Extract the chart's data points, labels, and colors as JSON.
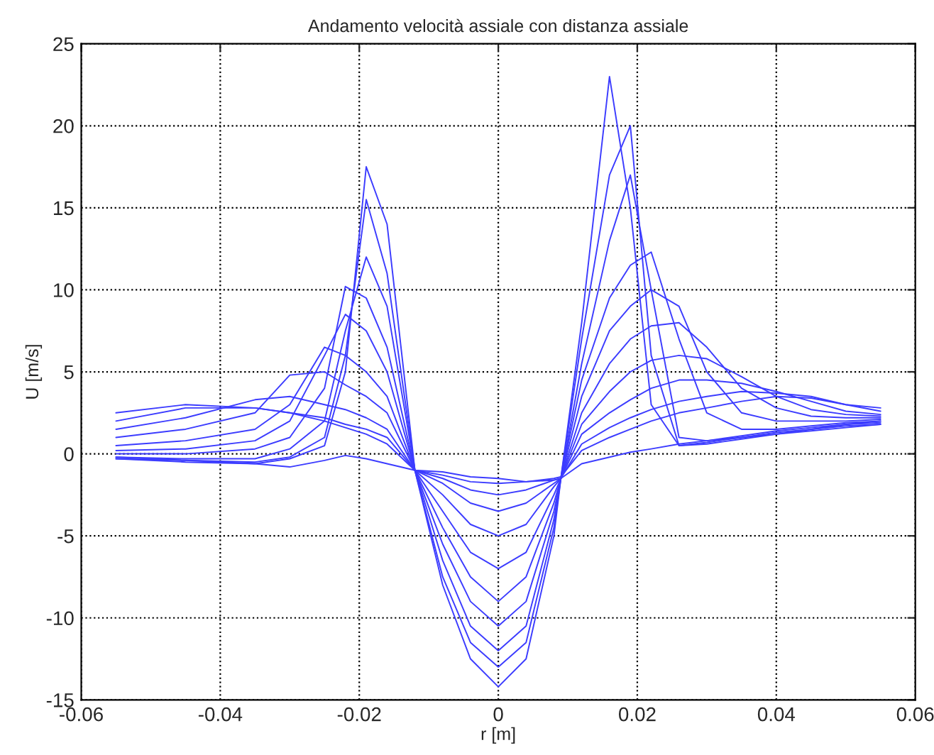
{
  "chart_data": {
    "type": "line",
    "title": "Andamento velocità assiale con distanza assiale",
    "xlabel": "r [m]",
    "ylabel": "U [m/s]",
    "x": [
      -0.055,
      -0.045,
      -0.035,
      -0.03,
      -0.025,
      -0.022,
      -0.019,
      -0.016,
      -0.012,
      -0.008,
      -0.004,
      0,
      0.004,
      0.008,
      0.009,
      0.012,
      0.016,
      0.019,
      0.022,
      0.026,
      0.03,
      0.035,
      0.04,
      0.045,
      0.05,
      0.055
    ],
    "series": [
      {
        "color": "#3c3cff",
        "values": [
          -0.3,
          -0.5,
          -0.6,
          -0.3,
          0.5,
          5,
          17.5,
          14,
          -1,
          -8,
          -12.5,
          -14.2,
          -12.5,
          -5,
          -1.5,
          8,
          23,
          15,
          3,
          0.5,
          0.6,
          0.9,
          1.2,
          1.5,
          1.7,
          1.8
        ]
      },
      {
        "color": "#3c3cff",
        "values": [
          -0.3,
          -0.4,
          -0.5,
          -0.2,
          1,
          6,
          15.5,
          11,
          -1,
          -7.5,
          -11.5,
          -13,
          -11.5,
          -4.5,
          -1.5,
          7,
          17,
          20,
          6,
          0.5,
          0.7,
          1,
          1.3,
          1.5,
          1.8,
          1.9
        ]
      },
      {
        "color": "#3c3cff",
        "values": [
          -0.2,
          -0.3,
          -0.3,
          0.3,
          2,
          7.5,
          12,
          9,
          -1,
          -6.5,
          -10.5,
          -12,
          -10.5,
          -4,
          -1.5,
          5.5,
          13,
          17,
          10,
          1,
          0.8,
          1.1,
          1.4,
          1.6,
          1.8,
          2
        ]
      },
      {
        "color": "#3c3cff",
        "values": [
          0,
          0,
          0.3,
          1,
          4,
          10.2,
          9.5,
          6.5,
          -1,
          -5.5,
          -9,
          -10.5,
          -9,
          -3.5,
          -1.5,
          4.5,
          9.5,
          11.5,
          12.3,
          7,
          2.5,
          1.5,
          1.5,
          1.7,
          1.9,
          2
        ]
      },
      {
        "color": "#3c3cff",
        "values": [
          0.2,
          0.3,
          0.8,
          2,
          6,
          8.5,
          7.5,
          5,
          -1,
          -4.5,
          -7.5,
          -9,
          -7.5,
          -3,
          -1.5,
          3.5,
          7.5,
          9,
          10,
          9,
          5,
          2.5,
          2,
          2,
          2,
          2.1
        ]
      },
      {
        "color": "#3c3cff",
        "values": [
          0.5,
          0.8,
          1.5,
          3,
          6.5,
          6,
          5,
          3.5,
          -1,
          -3.5,
          -6,
          -7,
          -6,
          -2.5,
          -1.5,
          2.5,
          5.5,
          7,
          7.8,
          8,
          6.5,
          4,
          2.8,
          2.3,
          2.2,
          2.2
        ]
      },
      {
        "color": "#3c3cff",
        "values": [
          1,
          1.5,
          2.5,
          4.8,
          5,
          4.2,
          3.5,
          2.5,
          -1,
          -2.5,
          -4.3,
          -5,
          -4.3,
          -2,
          -1.5,
          1.8,
          3.8,
          5,
          5.7,
          6,
          5.8,
          4.7,
          3.5,
          2.7,
          2.4,
          2.3
        ]
      },
      {
        "color": "#3c3cff",
        "values": [
          1.5,
          2.2,
          3.3,
          3.5,
          3,
          2.7,
          2.2,
          1.5,
          -1,
          -1.8,
          -3,
          -3.5,
          -3,
          -1.8,
          -1.5,
          1.2,
          2.5,
          3.3,
          4,
          4.5,
          4.5,
          4.3,
          3.8,
          3.2,
          2.6,
          2.4
        ]
      },
      {
        "color": "#3c3cff",
        "values": [
          2,
          2.8,
          2.8,
          2.5,
          2.2,
          1.8,
          1.5,
          1,
          -1,
          -1.5,
          -2.2,
          -2.5,
          -2.2,
          -1.6,
          -1.5,
          0.6,
          1.6,
          2.2,
          2.7,
          3.2,
          3.5,
          3.8,
          3.7,
          3.5,
          3,
          2.6
        ]
      },
      {
        "color": "#3c3cff",
        "values": [
          2.5,
          3,
          2.8,
          2.5,
          2,
          1.6,
          1.2,
          0.6,
          -1,
          -1.3,
          -1.7,
          -1.8,
          -1.7,
          -1.5,
          -1.4,
          0.2,
          1,
          1.5,
          2,
          2.5,
          2.8,
          3.2,
          3.5,
          3.4,
          3,
          2.8
        ]
      },
      {
        "color": "#3c3cff",
        "values": [
          -0.2,
          -0.4,
          -0.6,
          -0.8,
          -0.4,
          -0.1,
          -0.3,
          -0.6,
          -1,
          -1.1,
          -1.4,
          -1.5,
          -1.7,
          -1.6,
          -1.5,
          -0.6,
          -0.2,
          0.1,
          0.3,
          0.6,
          0.8,
          1,
          1.2,
          1.4,
          1.6,
          1.8
        ]
      }
    ],
    "xlim": [
      -0.06,
      0.06
    ],
    "xticks": [
      -0.06,
      -0.04,
      -0.02,
      0,
      0.02,
      0.04,
      0.06
    ],
    "ylim": [
      -15,
      25
    ],
    "yticks": [
      -15,
      -10,
      -5,
      0,
      5,
      10,
      15,
      20,
      25
    ],
    "grid": true,
    "line_style": "solid",
    "marker": "none"
  }
}
